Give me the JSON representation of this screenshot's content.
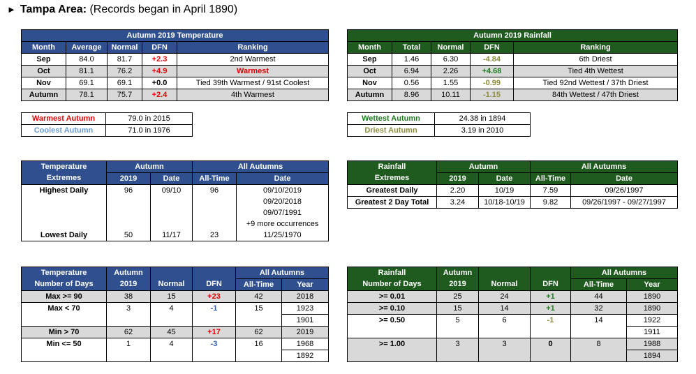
{
  "title": {
    "arrow": "►",
    "bold": "Tampa Area:",
    "rest": " (Records began in April 1890)"
  },
  "temp_table": {
    "title": "Autumn 2019 Temperature",
    "headers": [
      "Month",
      "Average",
      "Normal",
      "DFN",
      "Ranking"
    ],
    "rows": [
      [
        "Sep",
        "84.0",
        "81.7",
        "+2.3",
        "2nd Warmest"
      ],
      [
        "Oct",
        "81.1",
        "76.2",
        "+4.9",
        "Warmest"
      ],
      [
        "Nov",
        "69.1",
        "69.1",
        "+0.0",
        "Tied 39th Warmest / 91st Coolest"
      ],
      [
        "Autumn",
        "78.1",
        "75.7",
        "+2.4",
        "4th Warmest"
      ]
    ]
  },
  "rain_table": {
    "title": "Autumn 2019 Rainfall",
    "headers": [
      "Month",
      "Total",
      "Normal",
      "DFN",
      "Ranking"
    ],
    "rows": [
      [
        "Sep",
        "1.46",
        "6.30",
        "-4.84",
        "6th Driest"
      ],
      [
        "Oct",
        "6.94",
        "2.26",
        "+4.68",
        "Tied 4th Wettest"
      ],
      [
        "Nov",
        "0.56",
        "1.55",
        "-0.99",
        "Tied 92nd Wettest / 37th Driest"
      ],
      [
        "Autumn",
        "8.96",
        "10.11",
        "-1.15",
        "84th Wettest / 47th Driest"
      ]
    ]
  },
  "temp_records": [
    [
      "Warmest Autumn",
      "79.0 in 2015"
    ],
    [
      "Coolest Autumn",
      "71.0 in 1976"
    ]
  ],
  "rain_records": [
    [
      "Wettest Autumn",
      "24.38 in 1894"
    ],
    [
      "Driest Autumn",
      "3.19 in 2010"
    ]
  ],
  "temp_extremes": {
    "h1": "Temperature",
    "h2": "Extremes",
    "autumn": "Autumn",
    "all": "All Autumns",
    "c2019": "2019",
    "date": "Date",
    "alltime": "All-Time",
    "date2": "Date",
    "high_label": "Highest Daily",
    "high_val": "96",
    "high_date": "09/10",
    "high_all": "96",
    "high_dates": [
      "09/10/2019",
      "09/20/2018",
      "09/07/1991",
      "+9 more occurrences"
    ],
    "low_label": "Lowest Daily",
    "low_val": "50",
    "low_date": "11/17",
    "low_all": "23",
    "low_dates": "11/25/1970"
  },
  "rain_extremes": {
    "h1": "Rainfall",
    "h2": "Extremes",
    "autumn": "Autumn",
    "all": "All Autumns",
    "c2019": "2019",
    "date": "Date",
    "alltime": "All-Time",
    "date2": "Date",
    "rows": [
      [
        "Greatest Daily",
        "2.20",
        "10/19",
        "7.59",
        "09/26/1997"
      ],
      [
        "Greatest 2 Day Total",
        "3.24",
        "10/18-10/19",
        "9.82",
        "09/26/1997 - 09/27/1997"
      ]
    ]
  },
  "temp_days": {
    "h1": "Temperature",
    "h2": "Number of Days",
    "a1": "Autumn",
    "a2": "2019",
    "normal": "Normal",
    "dfn": "DFN",
    "all": "All Autumns",
    "alltime": "All-Time",
    "year": "Year",
    "rows": [
      {
        "label": "Max >= 90",
        "v": "38",
        "n": "15",
        "d": "+23",
        "a": "42",
        "y": [
          "2018"
        ]
      },
      {
        "label": "Max < 70",
        "v": "3",
        "n": "4",
        "d": "-1",
        "a": "15",
        "y": [
          "1923",
          "1901"
        ]
      },
      {
        "label": "Min > 70",
        "v": "62",
        "n": "45",
        "d": "+17",
        "a": "62",
        "y": [
          "2019"
        ]
      },
      {
        "label": "Min <= 50",
        "v": "1",
        "n": "4",
        "d": "-3",
        "a": "16",
        "y": [
          "1968",
          "1892"
        ]
      }
    ]
  },
  "rain_days": {
    "h1": "Rainfall",
    "h2": "Number of Days",
    "a1": "Autumn",
    "a2": "2019",
    "normal": "Normal",
    "dfn": "DFN",
    "all": "All Autumns",
    "alltime": "All-Time",
    "year": "Year",
    "rows": [
      {
        "label": ">= 0.01",
        "v": "25",
        "n": "24",
        "d": "+1",
        "a": "44",
        "y": [
          "1890"
        ]
      },
      {
        "label": ">= 0.10",
        "v": "15",
        "n": "14",
        "d": "+1",
        "a": "32",
        "y": [
          "1890"
        ]
      },
      {
        "label": ">= 0.50",
        "v": "5",
        "n": "6",
        "d": "-1",
        "a": "14",
        "y": [
          "1922",
          "1911"
        ]
      },
      {
        "label": ">= 1.00",
        "v": "3",
        "n": "3",
        "d": "0",
        "a": "8",
        "y": [
          "1988",
          "1894"
        ]
      }
    ]
  }
}
